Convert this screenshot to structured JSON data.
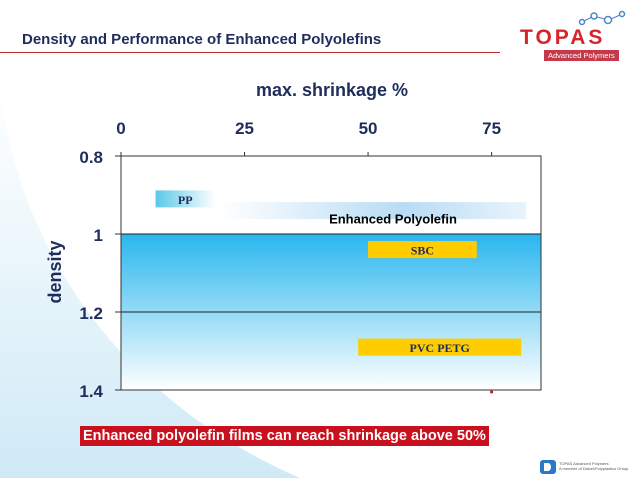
{
  "slide": {
    "title": "Density and Performance of Enhanced Polyolefins",
    "logo": {
      "name": "TOPAS",
      "subtitle": "Advanced Polymers"
    },
    "footer_text": "Enhanced polyolefin films can reach shrinkage above 50%",
    "footer_logo_lines": [
      "TOPAS Advanced Polymers",
      "A member of Daicel/Polyplastics Group"
    ]
  },
  "chart_data": {
    "type": "bar",
    "title": "",
    "xlabel": "max. shrinkage %",
    "ylabel": "density",
    "xlim": [
      0,
      85
    ],
    "ylim": [
      0.8,
      1.4
    ],
    "y_inverted": true,
    "x_axis_position": "top",
    "xticks": [
      "0",
      "25",
      "50",
      "75"
    ],
    "xtick_values": [
      0,
      25,
      50,
      75
    ],
    "yticks": [
      "0.8",
      "1",
      "1.2",
      "1.4"
    ],
    "ytick_values": [
      0.8,
      1.0,
      1.2,
      1.4
    ],
    "grid": "horizontal",
    "shaded_region": {
      "label": "",
      "y_from": 1.0,
      "y_to": 1.4,
      "color": "#29b6ee"
    },
    "ranges": [
      {
        "label": "PP",
        "x_start": 7,
        "x_end": 19,
        "density": 0.91,
        "color": "#5ac8e8",
        "label_color": "#1f2d5c"
      },
      {
        "label": "Enhanced  Polyolefin",
        "x_start": 20,
        "x_end": 82,
        "density": 0.94,
        "color": "#b8dcf5",
        "label_color": "#000000"
      },
      {
        "label": "SBC",
        "x_start": 50,
        "x_end": 72,
        "density": 1.04,
        "color": "#ffcc00",
        "label_color": "#1f2d5c"
      },
      {
        "label": "PVC      PETG",
        "x_start": 48,
        "x_end": 81,
        "density": 1.29,
        "color": "#ffcc00",
        "label_color": "#1f2d5c"
      }
    ],
    "colors": {
      "axis_text": "#1f2d5c",
      "title_rule": "#c0282e",
      "footer_bg": "#c8101e"
    }
  }
}
